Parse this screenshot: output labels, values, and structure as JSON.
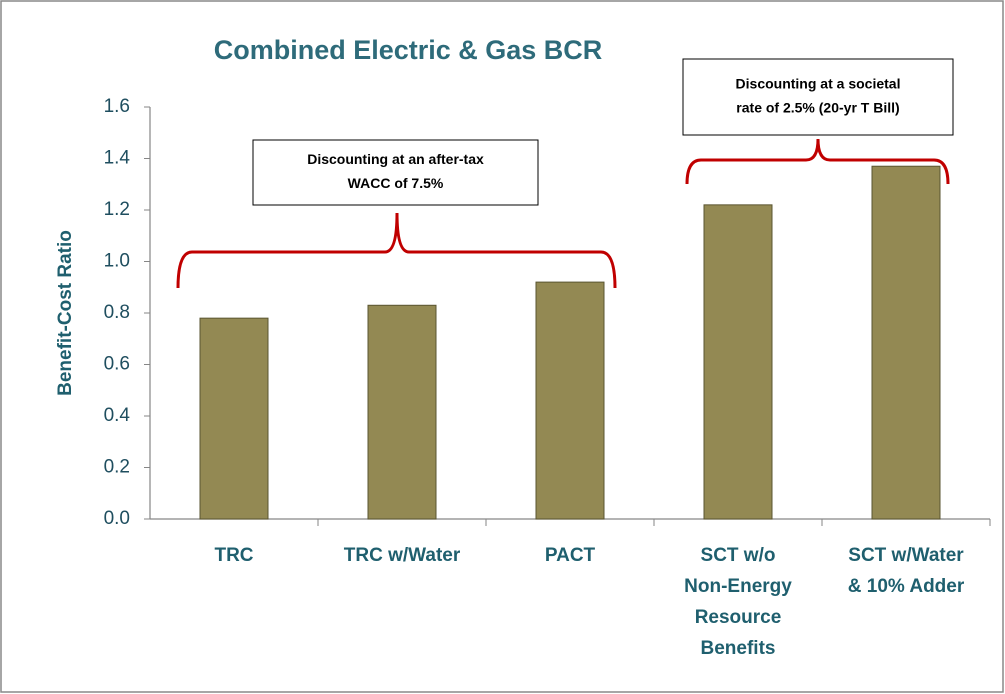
{
  "chart_data": {
    "type": "bar",
    "title": "Combined Electric & Gas BCR",
    "y_label": "Benefit-Cost Ratio",
    "categories": [
      [
        "TRC"
      ],
      [
        "TRC w/Water"
      ],
      [
        "PACT"
      ],
      [
        "SCT w/o",
        "Non-Energy",
        "Resource",
        "Benefits"
      ],
      [
        "SCT w/Water",
        "& 10% Adder"
      ]
    ],
    "values": [
      0.78,
      0.83,
      0.92,
      1.22,
      1.37
    ],
    "color": "#938953",
    "ylim": [
      0,
      1.6
    ],
    "yticks": [
      {
        "value": 0,
        "label": "0.0"
      },
      0.2,
      0.4,
      0.6,
      0.8,
      {
        "value": 1,
        "label": "1.0"
      },
      1.2,
      1.4,
      1.6
    ],
    "annotations": [
      {
        "text": [
          "Discounting at an after-tax",
          "WACC of 7.5%"
        ]
      },
      {
        "text": [
          "Discounting at a societal",
          "rate of 2.5% (20-yr T Bill)"
        ]
      }
    ]
  }
}
